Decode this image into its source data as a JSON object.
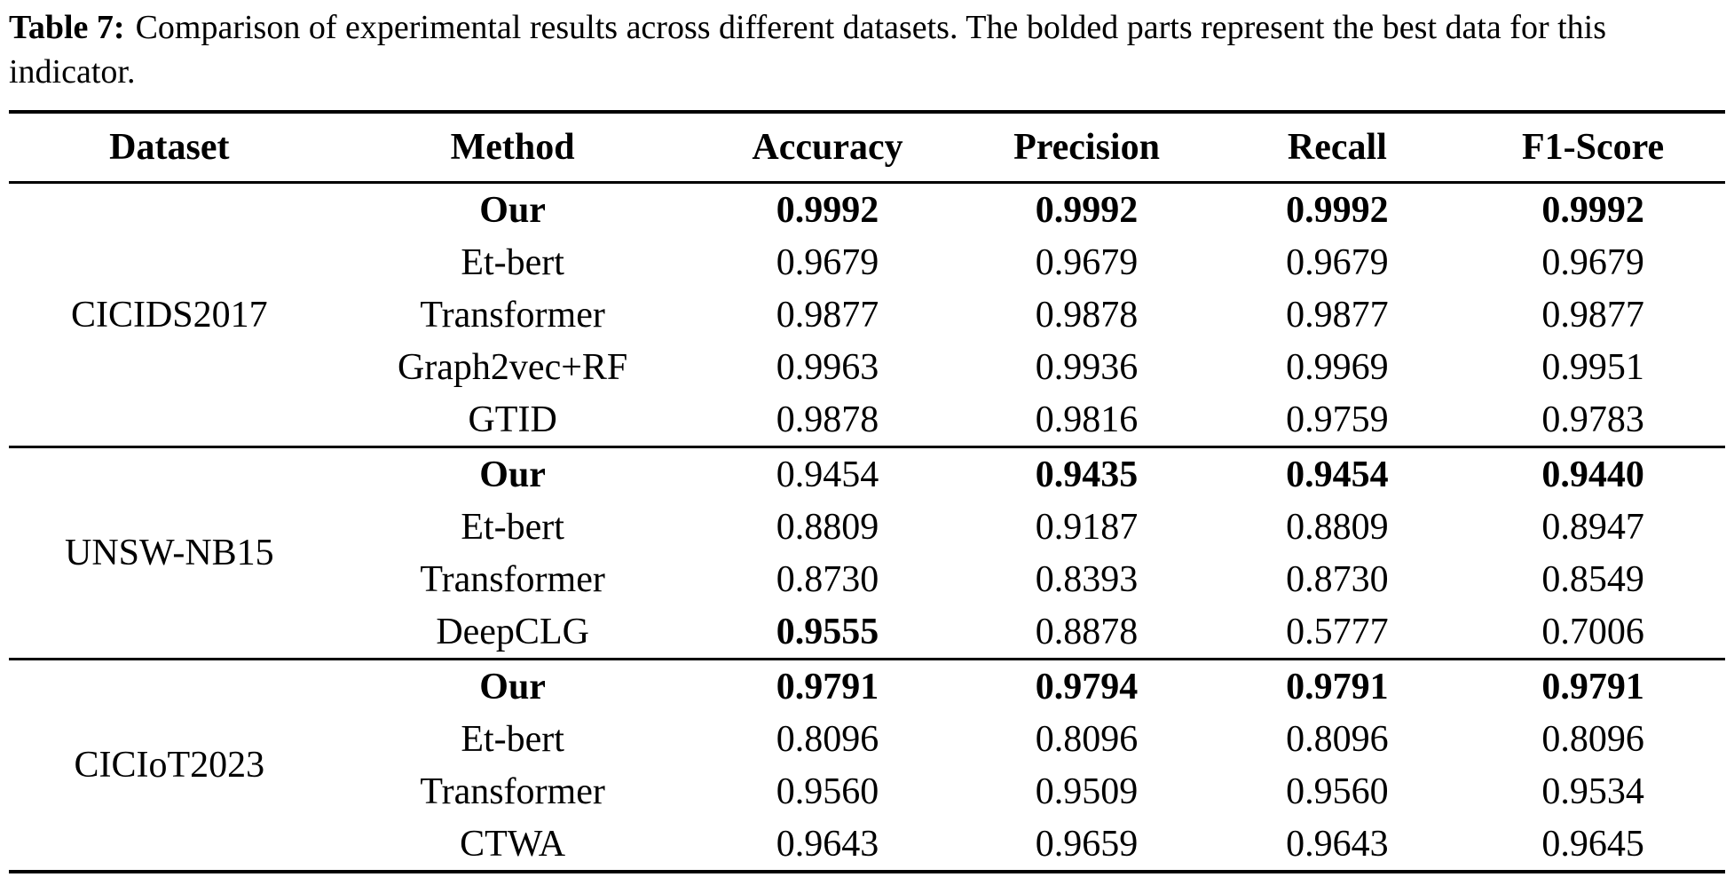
{
  "caption": {
    "label": "Table 7:",
    "text": "Comparison of experimental results across different datasets. The bolded parts represent the best data for this indicator."
  },
  "table": {
    "headers": [
      "Dataset",
      "Method",
      "Accuracy",
      "Precision",
      "Recall",
      "F1-Score"
    ],
    "groups": [
      {
        "dataset": "CICIDS2017",
        "rows": [
          {
            "method": "Our",
            "method_bold": true,
            "values": [
              "0.9992",
              "0.9992",
              "0.9992",
              "0.9992"
            ],
            "value_bold": [
              true,
              true,
              true,
              true
            ]
          },
          {
            "method": "Et-bert",
            "method_bold": false,
            "values": [
              "0.9679",
              "0.9679",
              "0.9679",
              "0.9679"
            ],
            "value_bold": [
              false,
              false,
              false,
              false
            ]
          },
          {
            "method": "Transformer",
            "method_bold": false,
            "values": [
              "0.9877",
              "0.9878",
              "0.9877",
              "0.9877"
            ],
            "value_bold": [
              false,
              false,
              false,
              false
            ]
          },
          {
            "method": "Graph2vec+RF",
            "method_bold": false,
            "values": [
              "0.9963",
              "0.9936",
              "0.9969",
              "0.9951"
            ],
            "value_bold": [
              false,
              false,
              false,
              false
            ]
          },
          {
            "method": "GTID",
            "method_bold": false,
            "values": [
              "0.9878",
              "0.9816",
              "0.9759",
              "0.9783"
            ],
            "value_bold": [
              false,
              false,
              false,
              false
            ]
          }
        ]
      },
      {
        "dataset": "UNSW-NB15",
        "rows": [
          {
            "method": "Our",
            "method_bold": true,
            "values": [
              "0.9454",
              "0.9435",
              "0.9454",
              "0.9440"
            ],
            "value_bold": [
              false,
              true,
              true,
              true
            ]
          },
          {
            "method": "Et-bert",
            "method_bold": false,
            "values": [
              "0.8809",
              "0.9187",
              "0.8809",
              "0.8947"
            ],
            "value_bold": [
              false,
              false,
              false,
              false
            ]
          },
          {
            "method": "Transformer",
            "method_bold": false,
            "values": [
              "0.8730",
              "0.8393",
              "0.8730",
              "0.8549"
            ],
            "value_bold": [
              false,
              false,
              false,
              false
            ]
          },
          {
            "method": "DeepCLG",
            "method_bold": false,
            "values": [
              "0.9555",
              "0.8878",
              "0.5777",
              "0.7006"
            ],
            "value_bold": [
              true,
              false,
              false,
              false
            ]
          }
        ]
      },
      {
        "dataset": "CICIoT2023",
        "rows": [
          {
            "method": "Our",
            "method_bold": true,
            "values": [
              "0.9791",
              "0.9794",
              "0.9791",
              "0.9791"
            ],
            "value_bold": [
              true,
              true,
              true,
              true
            ]
          },
          {
            "method": "Et-bert",
            "method_bold": false,
            "values": [
              "0.8096",
              "0.8096",
              "0.8096",
              "0.8096"
            ],
            "value_bold": [
              false,
              false,
              false,
              false
            ]
          },
          {
            "method": "Transformer",
            "method_bold": false,
            "values": [
              "0.9560",
              "0.9509",
              "0.9560",
              "0.9534"
            ],
            "value_bold": [
              false,
              false,
              false,
              false
            ]
          },
          {
            "method": "CTWA",
            "method_bold": false,
            "values": [
              "0.9643",
              "0.9659",
              "0.9643",
              "0.9645"
            ],
            "value_bold": [
              false,
              false,
              false,
              false
            ]
          }
        ]
      }
    ]
  }
}
